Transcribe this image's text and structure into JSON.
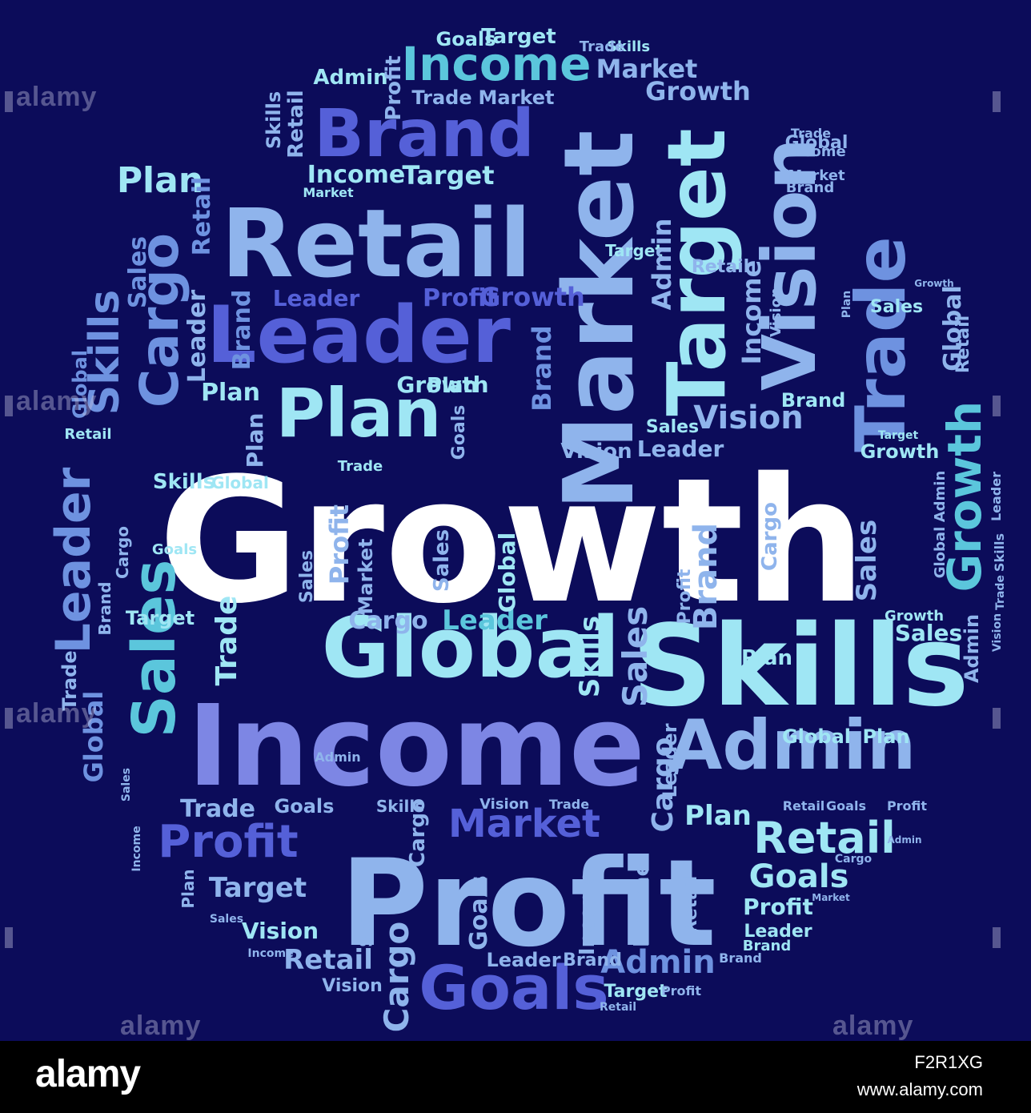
{
  "palette": {
    "background": "#0c0c5a",
    "white": "#ffffff",
    "light_cyan": "#9fe6f4",
    "cyan": "#5bc6dc",
    "light_blue": "#8fb4ec",
    "blue": "#6e92e0",
    "periwinkle": "#7d86e4",
    "indigo": "#5560d8",
    "footer": "#000000"
  },
  "cloud": {
    "word_growth_main": "Growth",
    "word_skills": "Skills",
    "word_income": "Income",
    "word_profit": "Profit",
    "word_retail": "Retail",
    "word_leader": "Leader",
    "word_global": "Global",
    "word_market": "Market",
    "word_target": "Target",
    "word_vision": "Vision",
    "word_trade": "Trade",
    "word_brand": "Brand",
    "word_plan": "Plan",
    "word_admin": "Admin",
    "word_goals": "Goals",
    "word_sales": "Sales",
    "word_cargo": "Cargo"
  },
  "watermark": {
    "text": "alamy"
  },
  "footer": {
    "logo": "alamy",
    "image_id": "F2R1XG",
    "url": "www.alamy.com"
  }
}
